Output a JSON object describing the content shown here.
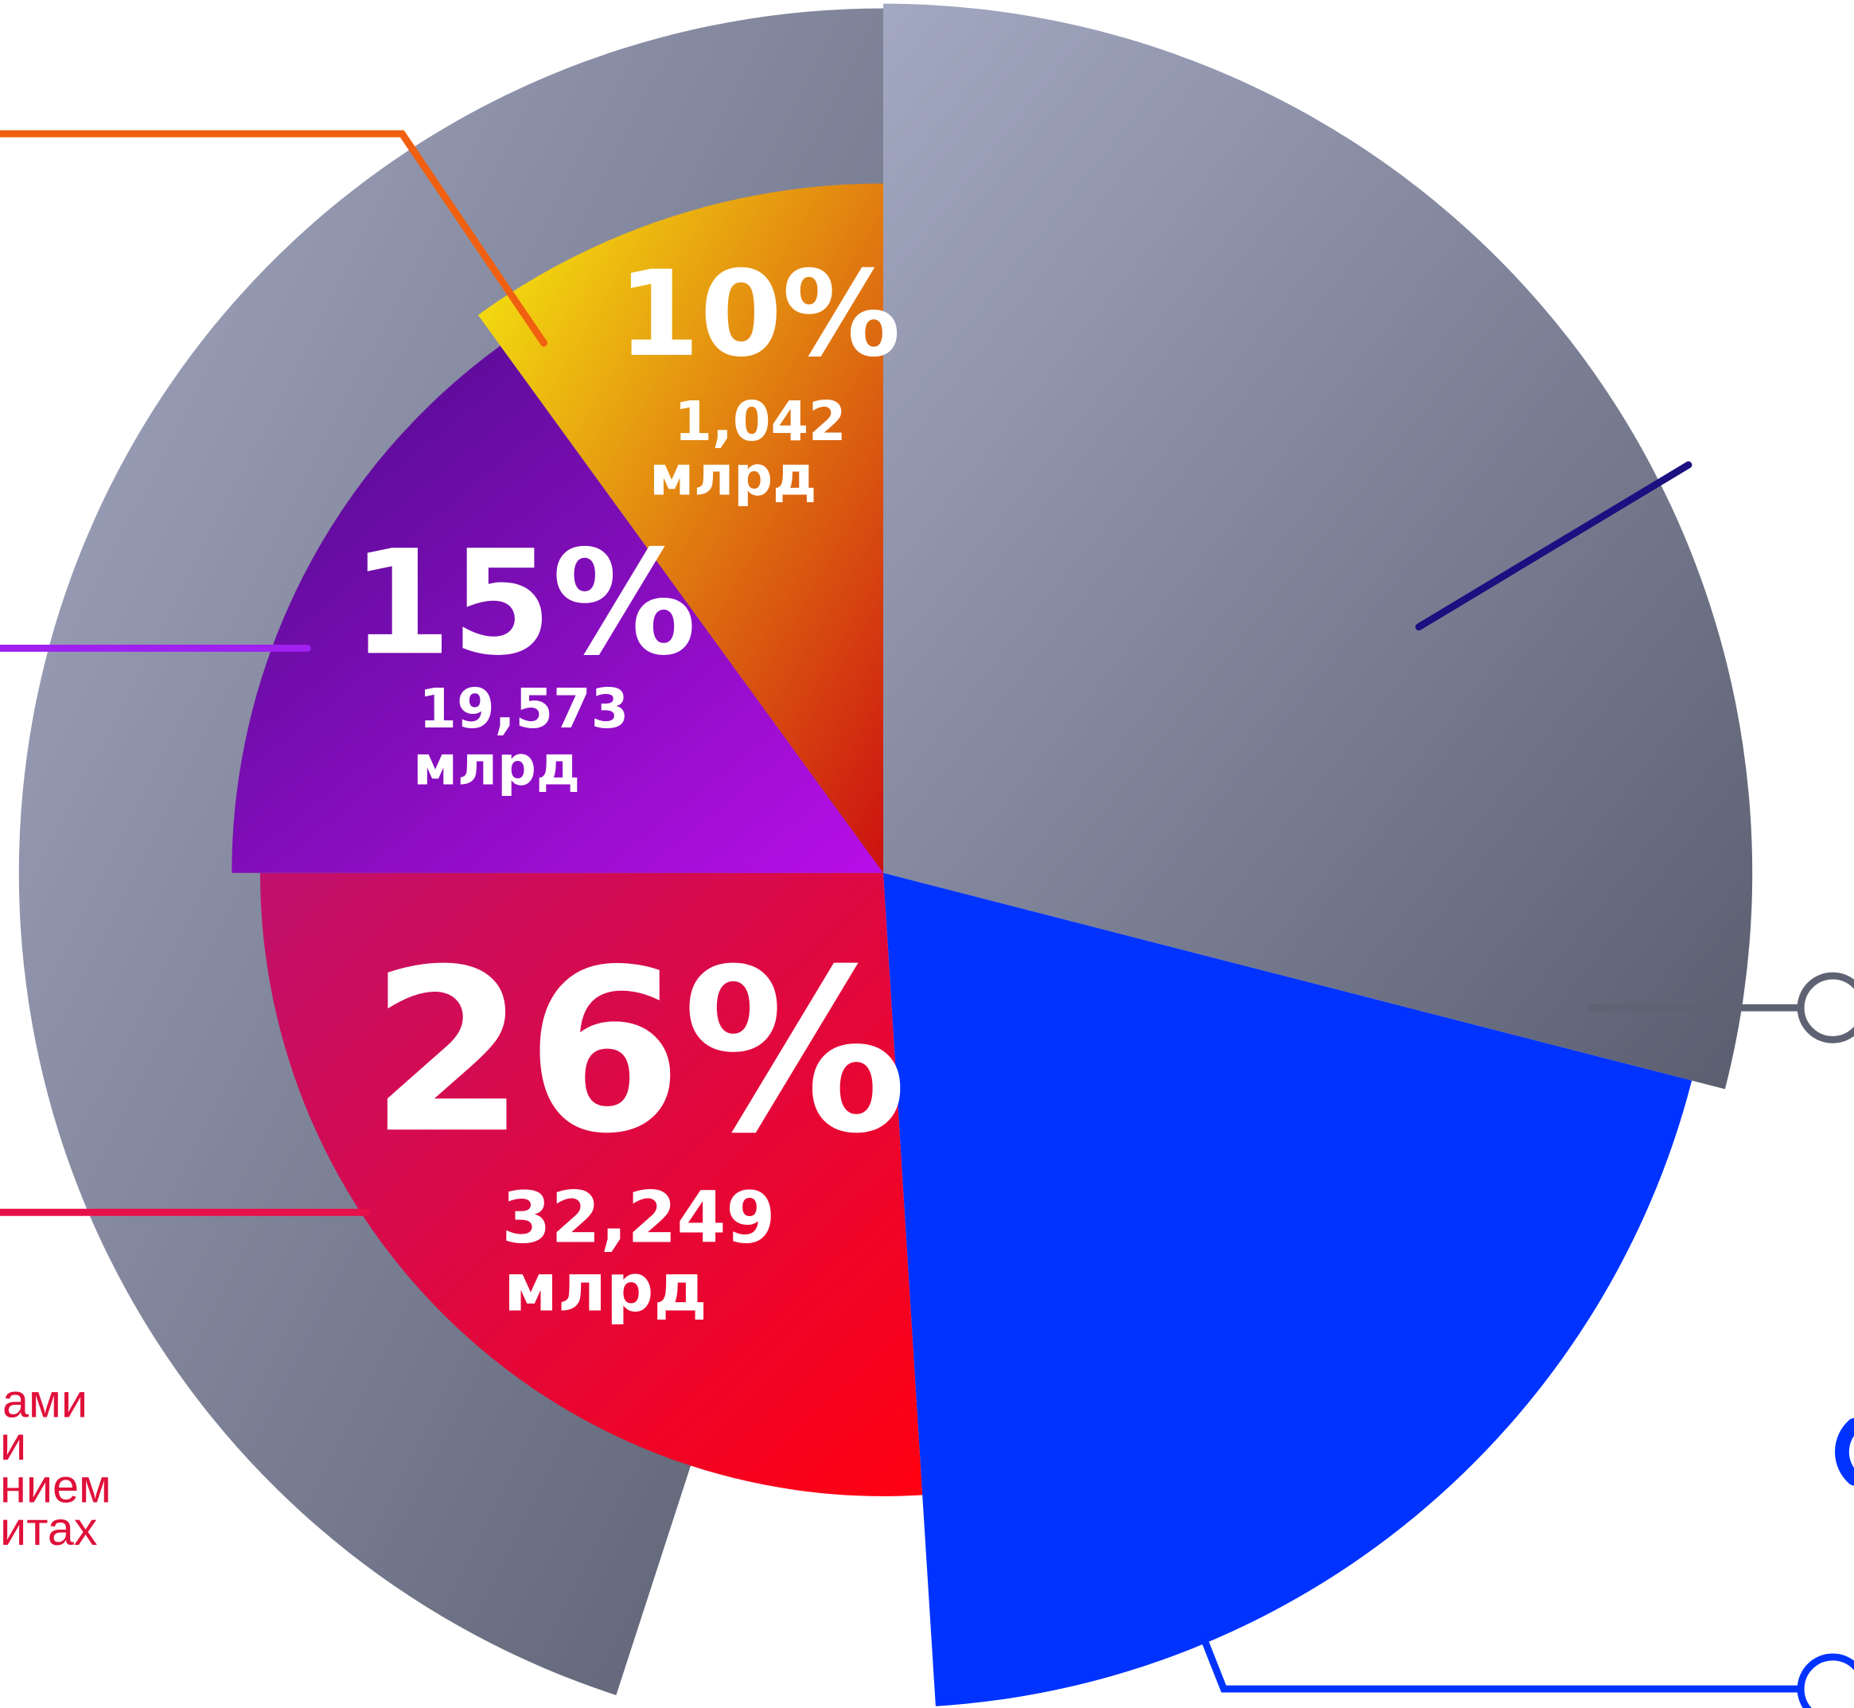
{
  "chart_data": {
    "type": "pie",
    "categories": [
      null,
      null,
      null,
      null,
      null
    ],
    "values": [
      29,
      20,
      26,
      15,
      10
    ],
    "value_labels": [
      null,
      null,
      "26%",
      "15%",
      "10%"
    ],
    "amounts": [
      null,
      null,
      "32,249",
      "19,573",
      "1,042"
    ],
    "unit": "млрд",
    "gradients": [
      [
        "#a3a8c2",
        "#5a5e6f"
      ],
      [
        "#0033ff",
        "#0033ff"
      ],
      [
        "#c0106e",
        "#ff0010"
      ],
      [
        "#4a0c8a",
        "#b80ee8"
      ],
      [
        "#f6ee10",
        "#cc1010"
      ]
    ],
    "annotation_lines": [
      "ами",
      "и",
      "нием",
      "итах"
    ]
  }
}
